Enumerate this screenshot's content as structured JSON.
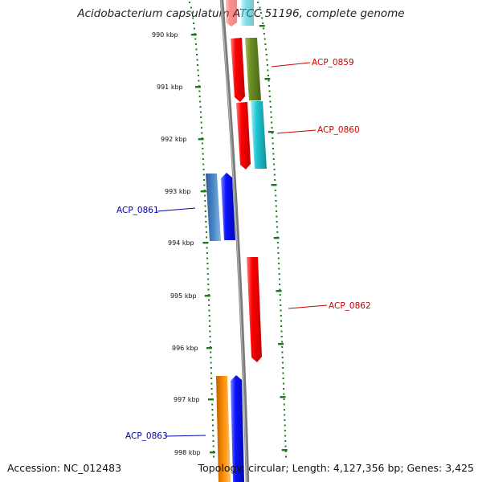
{
  "title": "Acidobacterium capsulatum ATCC 51196, complete genome",
  "footer": {
    "accession": "Accession: NC_012483",
    "topology": "Topology: circular; Length: 4,127,356 bp; Genes: 3,425"
  },
  "ruler_labels": [
    "990 kbp",
    "991 kbp",
    "992 kbp",
    "993 kbp",
    "994 kbp",
    "995 kbp",
    "996 kbp",
    "997 kbp",
    "998 kbp"
  ],
  "genes": [
    {
      "name": "ACP_0859",
      "color": "#cc0000"
    },
    {
      "name": "ACP_0860",
      "color": "#cc0000"
    },
    {
      "name": "ACP_0861",
      "color": "#0000aa"
    },
    {
      "name": "ACP_0862",
      "color": "#cc0000"
    },
    {
      "name": "ACP_0863",
      "color": "#0000aa"
    }
  ],
  "colors": {
    "red": "#ff0000",
    "olive": "#6b8e23",
    "cyan": "#22c8d6",
    "steelblue": "#4a86c8",
    "blue": "#0a14ff",
    "orange": "#ff8c00",
    "backbone": "#7a7a7a",
    "tick": "#1a7a1a"
  }
}
